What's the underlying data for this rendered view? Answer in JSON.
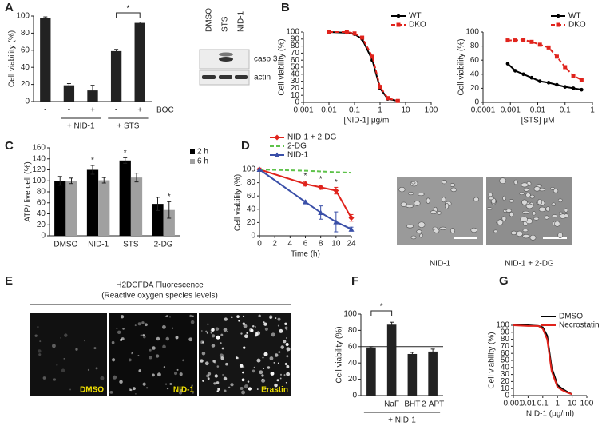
{
  "chart_data": [
    {
      "label": "A",
      "type": "bar",
      "y_label": "Cell viability (%)",
      "categories": [
        "-",
        "-",
        "+",
        "-",
        "+"
      ],
      "values": [
        98,
        19,
        13,
        59,
        92
      ],
      "errors": [
        1,
        2,
        6,
        2,
        1
      ],
      "color": "#222222",
      "ylim": [
        0,
        100
      ],
      "yticks": [
        0,
        20,
        40,
        60,
        80,
        100
      ],
      "group_labels": [
        "+ NID-1",
        "+ STS"
      ],
      "row_label": "BOC",
      "significance": "*"
    },
    {
      "label": "B",
      "type": "line",
      "log_x": true,
      "x_label": "[NID-1] μg/ml",
      "y_label": "Cell viability (%)",
      "x": [
        0.01,
        0.05,
        0.1,
        0.2,
        0.5,
        1,
        2,
        5
      ],
      "xlim": [
        0.001,
        100
      ],
      "xticks": [
        0.001,
        0.01,
        0.1,
        1,
        10,
        100
      ],
      "ylim": [
        0,
        100
      ],
      "yticks": [
        0,
        10,
        20,
        30,
        40,
        50,
        60,
        70,
        80,
        90,
        100
      ],
      "series": [
        {
          "name": "WT",
          "color": "#000000",
          "marker": "circle",
          "values": [
            100,
            99,
            97,
            90,
            60,
            20,
            5,
            2
          ]
        },
        {
          "name": "DKO",
          "color": "#e0231c",
          "marker": "square",
          "dash": true,
          "values": [
            100,
            100,
            98,
            92,
            65,
            22,
            6,
            2
          ]
        }
      ]
    },
    {
      "type": "line",
      "log_x": true,
      "x_label": "[STS] μM",
      "y_label": "Cell viability (%)",
      "x": [
        0.0008,
        0.0015,
        0.003,
        0.006,
        0.012,
        0.025,
        0.05,
        0.1,
        0.2,
        0.4
      ],
      "xlim": [
        0.0001,
        1
      ],
      "xticks": [
        0.0001,
        0.001,
        0.01,
        0.1,
        1
      ],
      "ylim": [
        0,
        100
      ],
      "yticks": [
        0,
        20,
        40,
        60,
        80,
        100
      ],
      "series": [
        {
          "name": "WT",
          "color": "#000000",
          "marker": "circle",
          "values": [
            55,
            45,
            40,
            35,
            30,
            28,
            25,
            22,
            20,
            18
          ]
        },
        {
          "name": "DKO",
          "color": "#e0231c",
          "marker": "square",
          "dash": true,
          "values": [
            88,
            88,
            89,
            86,
            82,
            78,
            65,
            50,
            38,
            32
          ]
        }
      ]
    },
    {
      "label": "C",
      "type": "bar",
      "y_label": "ATP/ live cell (%)",
      "categories": [
        "DMSO",
        "NID-1",
        "STS",
        "2-DG"
      ],
      "ylim": [
        0,
        160
      ],
      "yticks": [
        0,
        20,
        40,
        60,
        80,
        100,
        120,
        140,
        160
      ],
      "series": [
        {
          "name": "2 h",
          "color": "#000000",
          "values": [
            100,
            120,
            137,
            58
          ],
          "errors": [
            8,
            8,
            5,
            12
          ],
          "significance": [
            null,
            "*",
            "*",
            null
          ]
        },
        {
          "name": "6 h",
          "color": "#a0a0a0",
          "values": [
            100,
            101,
            106,
            47
          ],
          "errors": [
            5,
            5,
            8,
            15
          ],
          "significance": [
            null,
            null,
            null,
            "*"
          ]
        }
      ]
    },
    {
      "label": "D",
      "type": "line",
      "x_scale": "tick-spaced",
      "x_label": "Time (h)",
      "y_label": "Cell viability (%)",
      "x": [
        0,
        6,
        8,
        10,
        24
      ],
      "xlim": [
        0,
        24
      ],
      "xticks": [
        0,
        2,
        4,
        6,
        8,
        10,
        24
      ],
      "ylim": [
        0,
        100
      ],
      "yticks": [
        0,
        20,
        40,
        60,
        80,
        100
      ],
      "series": [
        {
          "name": "NID-1 + 2-DG",
          "color": "#e0231c",
          "marker": "diamond",
          "values": [
            100,
            78,
            73,
            68,
            27
          ],
          "errors": [
            2,
            3,
            3,
            5,
            5
          ],
          "significance": [
            null,
            "*",
            "*",
            "*",
            null
          ]
        },
        {
          "name": "2-DG",
          "color": "#5ec24a",
          "dash": true,
          "values": [
            100,
            98,
            97,
            96,
            95
          ]
        },
        {
          "name": "NID-1",
          "color": "#3a4fa8",
          "marker": "triangle",
          "values": [
            100,
            51,
            35,
            21,
            10
          ],
          "errors": [
            0,
            2,
            10,
            15,
            3
          ]
        }
      ]
    },
    {
      "label": "F",
      "type": "bar",
      "y_label": "Cell viability (%)",
      "categories": [
        "-",
        "NaF",
        "BHT",
        "2-APT"
      ],
      "values": [
        59,
        87,
        51,
        54
      ],
      "errors": [
        1,
        3,
        2,
        3
      ],
      "color": "#222222",
      "ylim": [
        0,
        100
      ],
      "yticks": [
        0,
        20,
        40,
        60,
        80,
        100
      ],
      "reference_line": 60,
      "group_labels": [
        "+ NID-1"
      ],
      "significance": "*"
    },
    {
      "label": "G",
      "type": "line",
      "log_x": true,
      "x_label": "NID-1 (μg/ml)",
      "y_label": "Cell viability (%)",
      "x": [
        0.001,
        0.01,
        0.05,
        0.1,
        0.2,
        0.4,
        1,
        2,
        5,
        10
      ],
      "xlim": [
        0.001,
        100
      ],
      "xticks": [
        0.001,
        0.01,
        0.1,
        1,
        10,
        100
      ],
      "ylim": [
        0,
        100
      ],
      "yticks": [
        0,
        10,
        20,
        30,
        40,
        50,
        60,
        70,
        80,
        90,
        100
      ],
      "series": [
        {
          "name": "DMSO",
          "color": "#000000",
          "values": [
            100,
            100,
            99,
            97,
            85,
            40,
            15,
            10,
            5,
            2
          ]
        },
        {
          "name": "Necrostatin",
          "color": "#e0231c",
          "values": [
            100,
            99,
            99,
            95,
            80,
            35,
            12,
            8,
            4,
            2
          ]
        }
      ]
    }
  ],
  "blot": {
    "lanes": [
      "DMSO",
      "STS",
      "NID-1"
    ],
    "bands": [
      "casp 3",
      "actin"
    ]
  },
  "micrographs": {
    "labels": [
      "NID-1",
      "NID-1 + 2-DG"
    ]
  },
  "panel_E": {
    "label": "E",
    "title": "H2DCFDA Fluorescence",
    "subtitle": "(Reactive oxygen species levels)",
    "images": [
      "DMSO",
      "NID-1",
      "Erastin"
    ]
  }
}
